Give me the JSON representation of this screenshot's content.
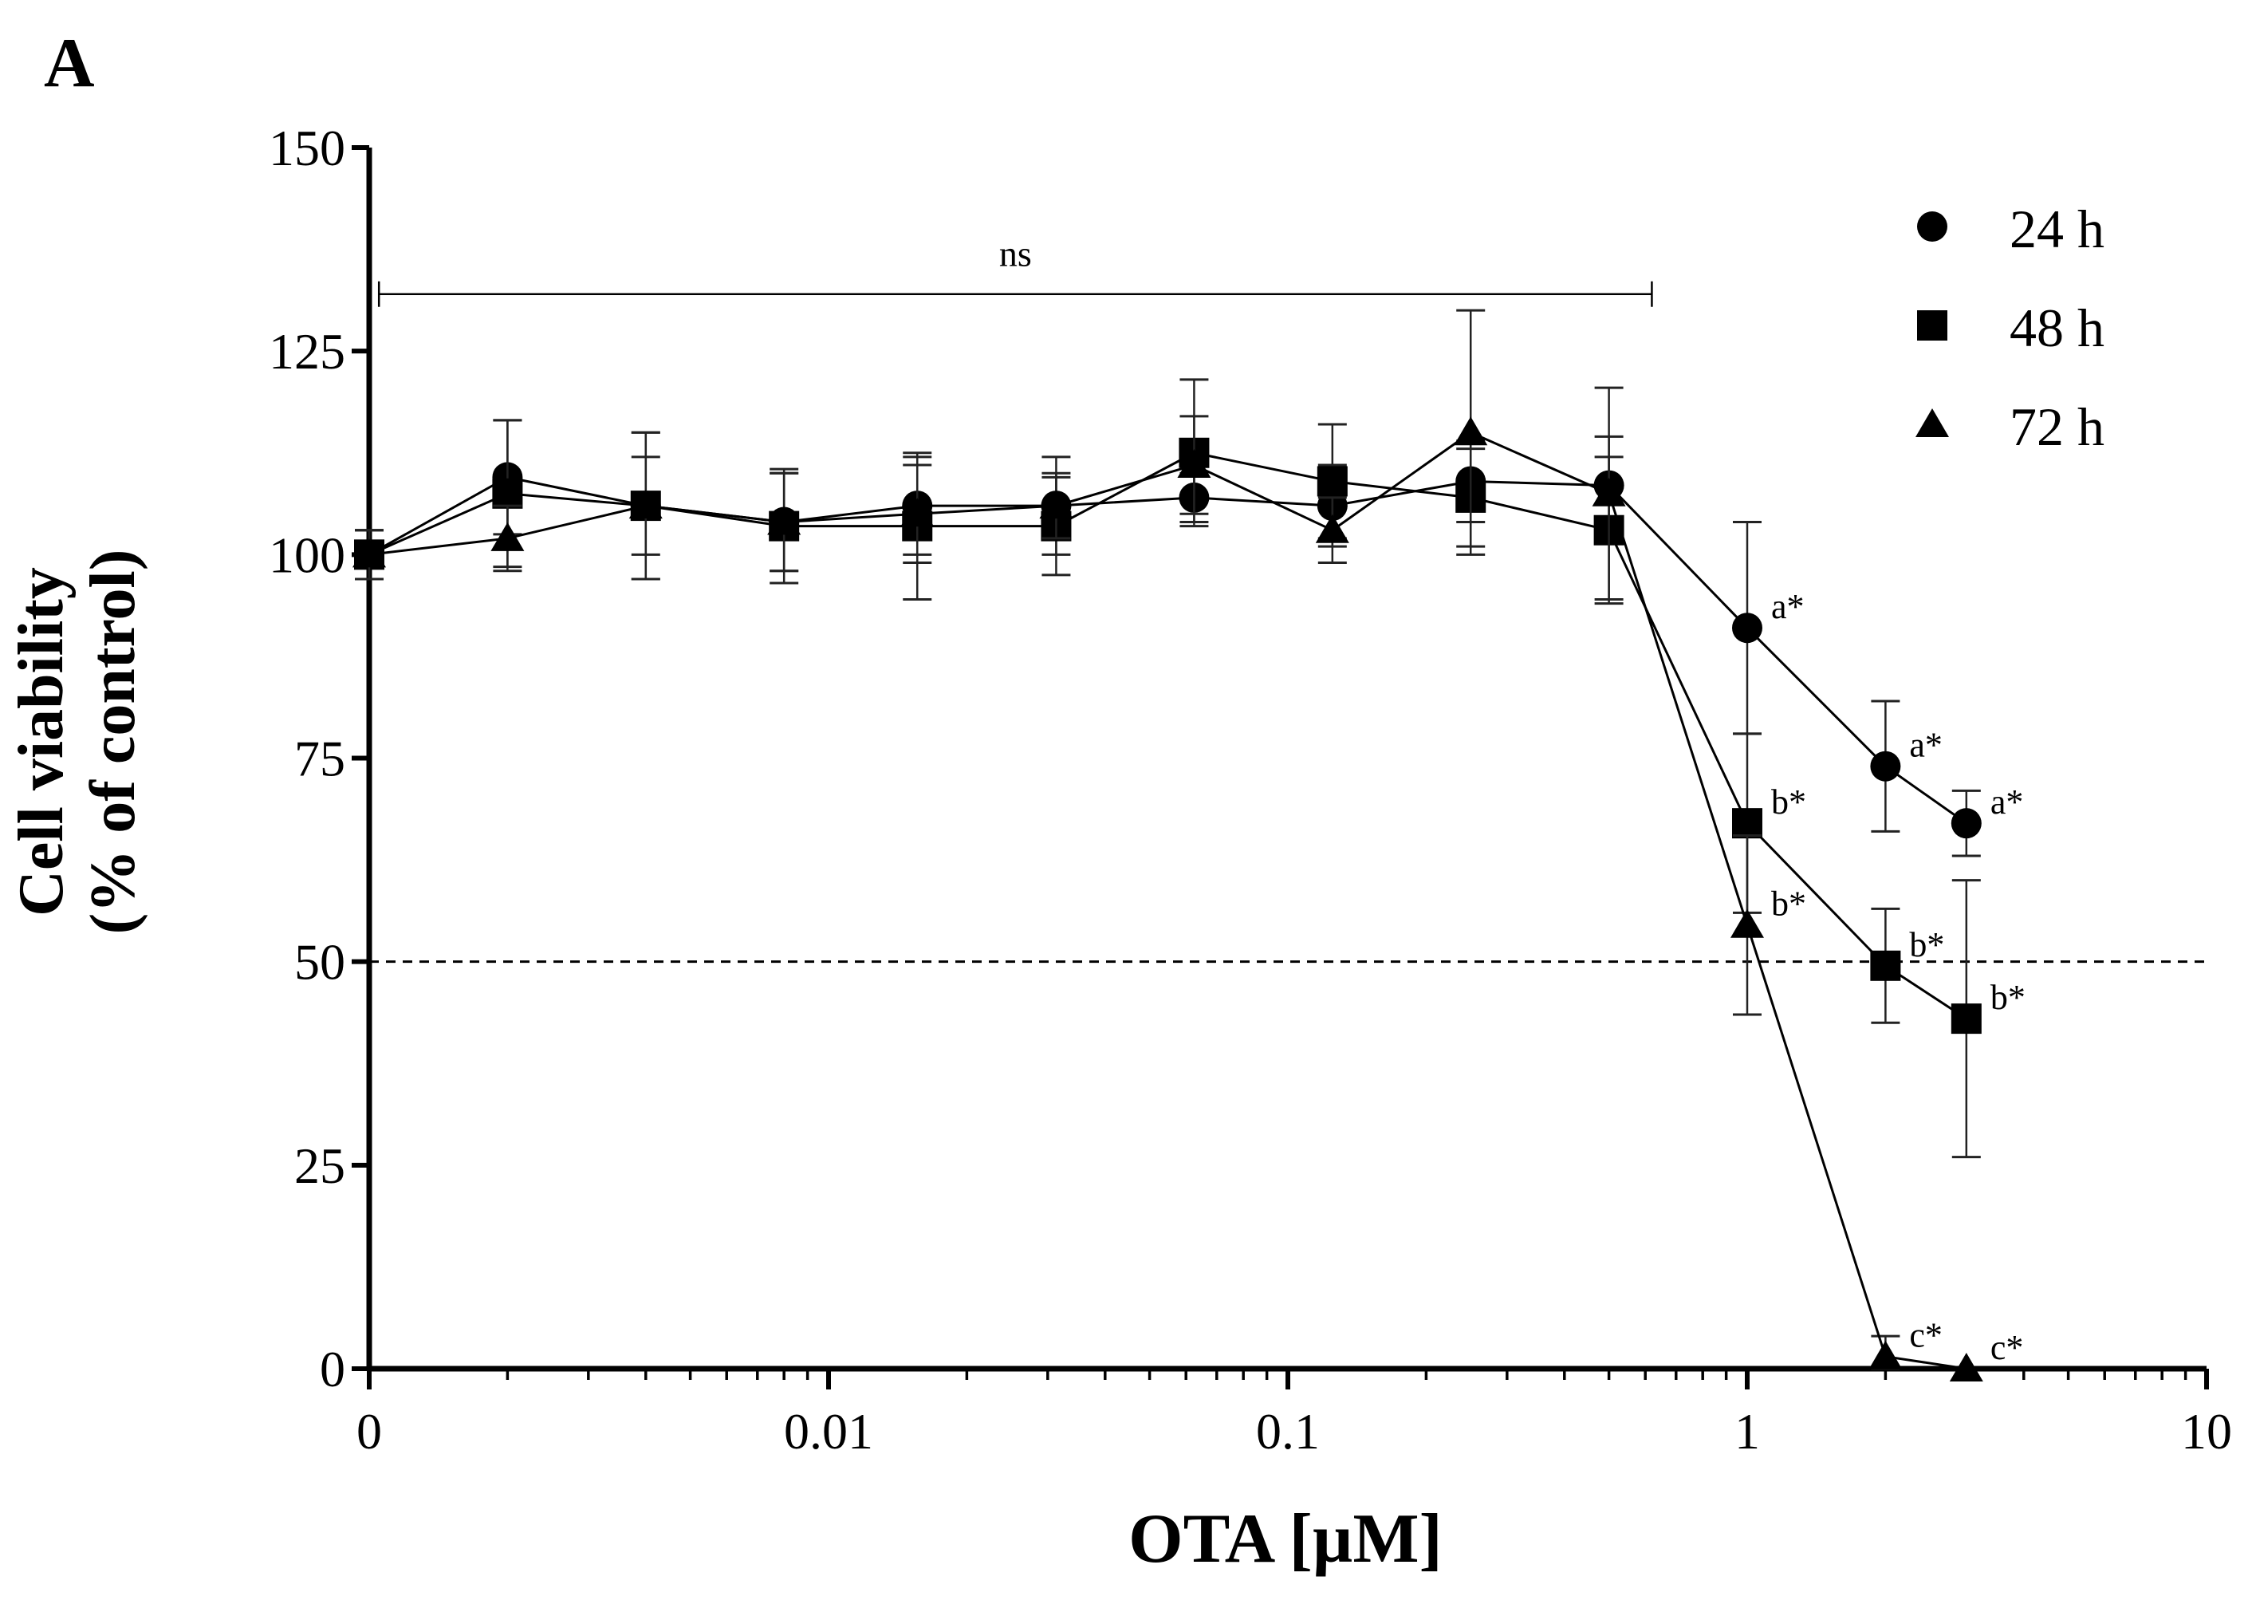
{
  "panel_label": "A",
  "chart_data": {
    "type": "line",
    "title": "",
    "xlabel": "OTA [µM]",
    "ylabel_line1": "Cell viability",
    "ylabel_line2": "(% of control)",
    "x_scale": "log",
    "xlim": [
      0.001,
      10
    ],
    "ylim": [
      0,
      150
    ],
    "x_ticks": [
      {
        "value": 0.001,
        "label": "0"
      },
      {
        "value": 0.01,
        "label": "0.01"
      },
      {
        "value": 0.1,
        "label": "0.1"
      },
      {
        "value": 1,
        "label": "1"
      },
      {
        "value": 10,
        "label": "10"
      }
    ],
    "y_ticks": [
      0,
      25,
      50,
      75,
      100,
      125,
      150
    ],
    "reference_line": {
      "y": 50,
      "style": "dashed"
    },
    "significance_bracket": {
      "label": "ns",
      "x_start": 0.00105,
      "x_end": 0.62,
      "y": 132
    },
    "legend_position": "top-right",
    "series": [
      {
        "name": "24 h",
        "marker": "circle",
        "points": [
          {
            "x": 0.001,
            "y": 100,
            "err": 3
          },
          {
            "x": 0.002,
            "y": 109.5,
            "err": 7
          },
          {
            "x": 0.004,
            "y": 106,
            "err": 9
          },
          {
            "x": 0.008,
            "y": 104,
            "err": 6
          },
          {
            "x": 0.0156,
            "y": 106,
            "err": 6
          },
          {
            "x": 0.0313,
            "y": 106,
            "err": 6
          },
          {
            "x": 0.0625,
            "y": 107,
            "err": 3
          },
          {
            "x": 0.125,
            "y": 106,
            "err": 5
          },
          {
            "x": 0.25,
            "y": 109,
            "err": 5
          },
          {
            "x": 0.5,
            "y": 108.5,
            "err": 6
          },
          {
            "x": 1,
            "y": 91,
            "err": 13
          },
          {
            "x": 2,
            "y": 74,
            "err": 8
          },
          {
            "x": 3,
            "y": 67,
            "err": 4
          }
        ],
        "annotations": [
          {
            "x": 1,
            "y": 91,
            "label": "a*"
          },
          {
            "x": 2,
            "y": 74,
            "label": "a*"
          },
          {
            "x": 3,
            "y": 67,
            "label": "a*"
          }
        ]
      },
      {
        "name": "48 h",
        "marker": "square",
        "points": [
          {
            "x": 0.001,
            "y": 100,
            "err": 3
          },
          {
            "x": 0.002,
            "y": 107.5,
            "err": 9
          },
          {
            "x": 0.004,
            "y": 106,
            "err": 9
          },
          {
            "x": 0.008,
            "y": 103.5,
            "err": 7
          },
          {
            "x": 0.0156,
            "y": 103.5,
            "err": 9
          },
          {
            "x": 0.0313,
            "y": 103.5,
            "err": 6
          },
          {
            "x": 0.0625,
            "y": 112.5,
            "err": 9
          },
          {
            "x": 0.125,
            "y": 109,
            "err": 7
          },
          {
            "x": 0.25,
            "y": 107,
            "err": 6
          },
          {
            "x": 0.5,
            "y": 103,
            "err": 9
          },
          {
            "x": 1,
            "y": 67,
            "err": 11
          },
          {
            "x": 2,
            "y": 49.5,
            "err": 7
          },
          {
            "x": 3,
            "y": 43,
            "err": 17
          }
        ],
        "annotations": [
          {
            "x": 1,
            "y": 67,
            "label": "b*"
          },
          {
            "x": 2,
            "y": 49.5,
            "label": "b*"
          },
          {
            "x": 3,
            "y": 43,
            "label": "b*"
          }
        ]
      },
      {
        "name": "72 h",
        "marker": "triangle",
        "points": [
          {
            "x": 0.001,
            "y": 100,
            "err": 3
          },
          {
            "x": 0.002,
            "y": 102,
            "err": 4
          },
          {
            "x": 0.004,
            "y": 106,
            "err": 6
          },
          {
            "x": 0.008,
            "y": 104,
            "err": 6
          },
          {
            "x": 0.0156,
            "y": 105,
            "err": 6
          },
          {
            "x": 0.0313,
            "y": 106,
            "err": 4
          },
          {
            "x": 0.0625,
            "y": 111,
            "err": 6
          },
          {
            "x": 0.125,
            "y": 103,
            "err": 4
          },
          {
            "x": 0.25,
            "y": 115,
            "err": 15
          },
          {
            "x": 0.5,
            "y": 107.5,
            "err": 13
          },
          {
            "x": 1,
            "y": 54.5,
            "err": 11
          },
          {
            "x": 2,
            "y": 1.5,
            "err": 2.5
          },
          {
            "x": 3,
            "y": 0,
            "err": 0
          }
        ],
        "annotations": [
          {
            "x": 1,
            "y": 54.5,
            "label": "b*"
          },
          {
            "x": 2,
            "y": 1.5,
            "label": "c*"
          },
          {
            "x": 3,
            "y": 0,
            "label": "c*"
          }
        ]
      }
    ]
  }
}
